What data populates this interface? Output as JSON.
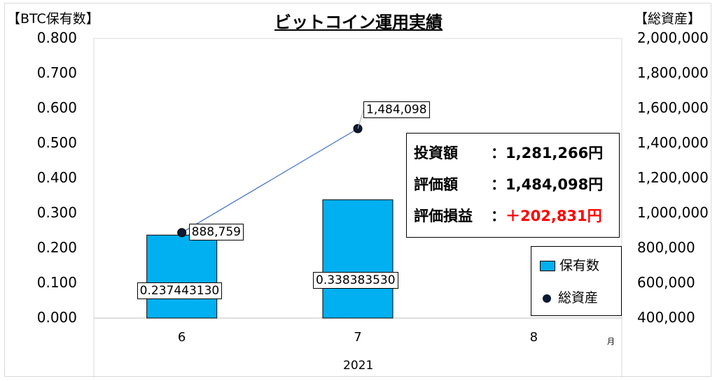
{
  "chart_data": {
    "type": "bar+line",
    "title": "ビットコイン運用実績",
    "y_left_label": "【BTC保有数】",
    "y_right_label": "【総資産】",
    "x_unit": "月",
    "x_group": "2021",
    "categories": [
      "6",
      "7",
      "8"
    ],
    "y_left_ticks": [
      "0.000",
      "0.100",
      "0.200",
      "0.300",
      "0.400",
      "0.500",
      "0.600",
      "0.700",
      "0.800"
    ],
    "y_right_ticks": [
      "400,000",
      "600,000",
      "800,000",
      "1,000,000",
      "1,200,000",
      "1,400,000",
      "1,600,000",
      "1,800,000",
      "2,000,000"
    ],
    "ylim_left": [
      0,
      0.8
    ],
    "ylim_right": [
      400000,
      2000000
    ],
    "series": [
      {
        "name": "保有数",
        "kind": "bar",
        "axis": "left",
        "color": "#00b0f0",
        "values": [
          0.23744313,
          0.33838353,
          null
        ],
        "labels": [
          "0.237443130",
          "0.338383530",
          ""
        ]
      },
      {
        "name": "総資産",
        "kind": "line",
        "axis": "right",
        "color": "#4472c4",
        "marker_color": "#0b1a33",
        "values": [
          888759,
          1484098,
          null
        ],
        "labels": [
          "888,759",
          "1,484,098",
          ""
        ]
      }
    ],
    "grid": false,
    "legend": "bottom-right"
  },
  "summary": {
    "rows": [
      {
        "label": "投資額",
        "value": "：1,281,266円",
        "color": "#000000"
      },
      {
        "label": "評価額",
        "value": "：1,484,098円",
        "color": "#000000"
      },
      {
        "label": "評価損益",
        "value": "：",
        "highlight": "＋202,831円",
        "color": "#ff0000"
      }
    ]
  }
}
